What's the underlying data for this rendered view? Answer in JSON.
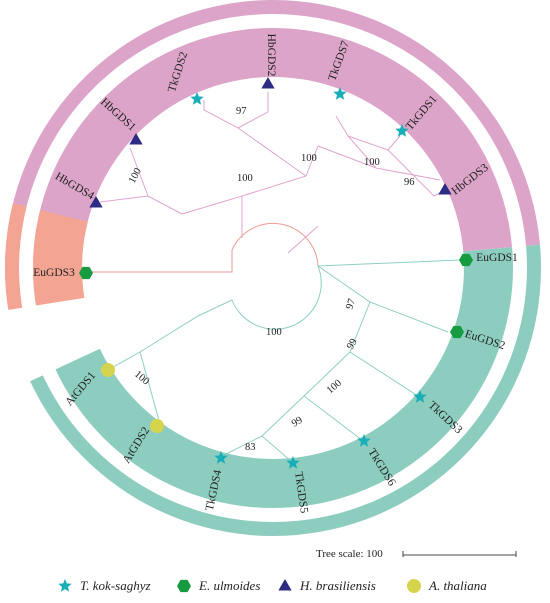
{
  "palette": {
    "pink_band": "#dda4c9",
    "salmon_band": "#f4a492",
    "teal_band": "#8ccdbf",
    "branch_pink": "#e0a4cf",
    "branch_salmon": "#ee9a92",
    "branch_teal": "#8fcfc3",
    "star": "#1aaeb8",
    "hexagon": "#169b41",
    "triangle": "#2d2b82",
    "circle": "#d6d44c"
  },
  "leaves": [
    {
      "label": "TkGDS2",
      "shape": "star"
    },
    {
      "label": "HbGDS2",
      "shape": "triangle"
    },
    {
      "label": "TkGDS7",
      "shape": "star"
    },
    {
      "label": "TkGDS1",
      "shape": "star"
    },
    {
      "label": "HbGDS3",
      "shape": "triangle"
    },
    {
      "label": "HbGDS1",
      "shape": "triangle"
    },
    {
      "label": "HbGDS4",
      "shape": "triangle"
    },
    {
      "label": "EuGDS3",
      "shape": "hexagon"
    },
    {
      "label": "EuGDS1",
      "shape": "hexagon"
    },
    {
      "label": "EuGDS2",
      "shape": "hexagon"
    },
    {
      "label": "TkGDS3",
      "shape": "star"
    },
    {
      "label": "TkGDS6",
      "shape": "star"
    },
    {
      "label": "TkGDS5",
      "shape": "star"
    },
    {
      "label": "TkGDS4",
      "shape": "star"
    },
    {
      "label": "AtGDS1",
      "shape": "circle"
    },
    {
      "label": "AtGDS2",
      "shape": "circle"
    }
  ],
  "bootstrap": [
    "97",
    "100",
    "100",
    "96",
    "100",
    "100",
    "100",
    "97",
    "99",
    "100",
    "99",
    "83",
    "100"
  ],
  "scale": {
    "label": "Tree scale: 100"
  },
  "legend": [
    {
      "shape": "star",
      "label": "T. kok-saghyz"
    },
    {
      "shape": "hexagon",
      "label": "E. ulmoides"
    },
    {
      "shape": "triangle",
      "label": "H. brasiliensis"
    },
    {
      "shape": "circle",
      "label": "A. thaliana"
    }
  ]
}
